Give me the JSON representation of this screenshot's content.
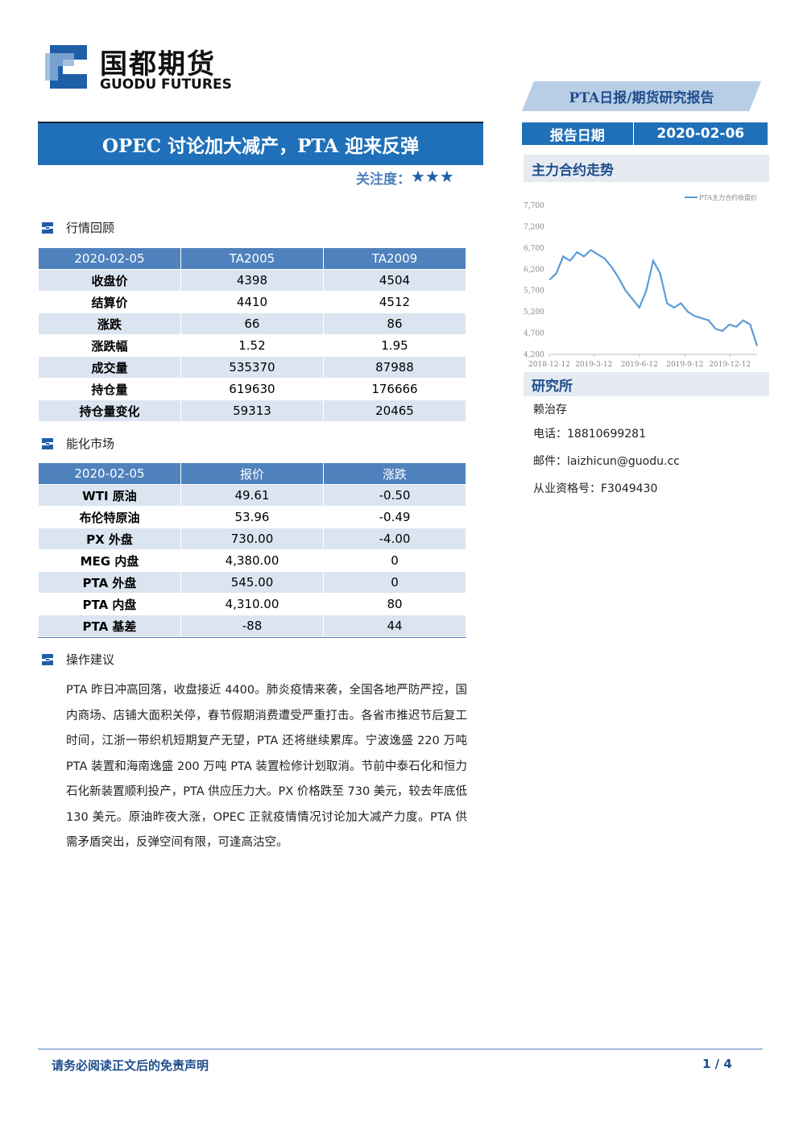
{
  "header": {
    "logo_cn": "国都期货",
    "logo_en": "GUODU FUTURES",
    "report_type": "PTA日报/期货研究报告",
    "date_label": "报告日期",
    "date": "2020-02-06"
  },
  "title": "OPEC 讨论加大减产，PTA 迎来反弹",
  "attention_label": "关注度：",
  "attention": "★★★",
  "market_review": {
    "heading": "行情回顾",
    "table": {
      "header": [
        "2020-02-05",
        "TA2005",
        "TA2009"
      ],
      "rows": [
        [
          "收盘价",
          "4398",
          "4504"
        ],
        [
          "结算价",
          "4410",
          "4512"
        ],
        [
          "涨跌",
          "66",
          "86"
        ],
        [
          "涨跌幅",
          "1.52",
          "1.95"
        ],
        [
          "成交量",
          "535370",
          "87988"
        ],
        [
          "持仓量",
          "619630",
          "176666"
        ],
        [
          "持仓量变化",
          "59313",
          "20465"
        ]
      ]
    }
  },
  "energy_market": {
    "heading": "能化市场",
    "table": {
      "header": [
        "2020-02-05",
        "报价",
        "涨跌"
      ],
      "rows": [
        [
          "WTI 原油",
          "49.61",
          "-0.50"
        ],
        [
          "布伦特原油",
          "53.96",
          "-0.49"
        ],
        [
          "PX 外盘",
          "730.00",
          "-4.00"
        ],
        [
          "MEG 内盘",
          "4,380.00",
          "0"
        ],
        [
          "PTA 外盘",
          "545.00",
          "0"
        ],
        [
          "PTA 内盘",
          "4,310.00",
          "80"
        ],
        [
          "PTA 基差",
          "-88",
          "44"
        ]
      ]
    }
  },
  "advice": {
    "heading": "操作建议",
    "text": "PTA 昨日冲高回落，收盘接近 4400。肺炎疫情来袭，全国各地严防严控，国内商场、店铺大面积关停，春节假期消费遭受严重打击。各省市推迟节后复工时间，江浙一带织机短期复产无望，PTA 还将继续累库。宁波逸盛 220 万吨 PTA 装置和海南逸盛 200 万吨 PTA 装置检修计划取消。节前中泰石化和恒力石化新装置顺利投产，PTA 供应压力大。PX 价格跌至 730 美元，较去年底低 130 美元。原油昨夜大涨，OPEC 正就疫情情况讨论加大减产力度。PTA 供需矛盾突出，反弹空间有限，可逢高沽空。"
  },
  "sidebar": {
    "chart_heading": "主力合约走势",
    "research_heading": "研究所",
    "analyst": "赖治存",
    "phone": "电话：18810699281",
    "email": "邮件：laizhicun@guodu.cc",
    "license": "从业资格号：F3049430"
  },
  "chart_data": {
    "type": "line",
    "x": [
      "2018-12-12",
      "2018-12-26",
      "2019-01-09",
      "2019-01-23",
      "2019-02-06",
      "2019-02-20",
      "2019-03-06",
      "2019-03-20",
      "2019-04-03",
      "2019-04-17",
      "2019-05-01",
      "2019-05-15",
      "2019-05-29",
      "2019-06-12",
      "2019-06-26",
      "2019-07-10",
      "2019-07-24",
      "2019-08-07",
      "2019-08-21",
      "2019-09-04",
      "2019-09-18",
      "2019-10-02",
      "2019-10-16",
      "2019-10-30",
      "2019-11-13",
      "2019-11-27",
      "2019-12-11",
      "2019-12-25",
      "2020-01-08",
      "2020-01-22",
      "2020-02-05"
    ],
    "series": [
      {
        "name": "PTA主力合约收盘价",
        "color": "#5b9bd5",
        "values": [
          5950,
          6100,
          6500,
          6400,
          6600,
          6500,
          6650,
          6550,
          6450,
          6250,
          6000,
          5700,
          5500,
          5300,
          5700,
          6400,
          6100,
          5400,
          5300,
          5400,
          5200,
          5100,
          5050,
          5000,
          4800,
          4750,
          4900,
          4850,
          5000,
          4900,
          4400
        ]
      }
    ],
    "xlim": [
      "2018-12-12",
      "2020-02-05"
    ],
    "xticks": [
      "2018-12-12",
      "2019-3-12",
      "2019-6-12",
      "2019-9-12",
      "2019-12-12"
    ],
    "ylim": [
      4200,
      7700
    ],
    "yticks": [
      {
        "value": 4200,
        "label": "4,200"
      },
      {
        "value": 4700,
        "label": "4,700"
      },
      {
        "value": 5200,
        "label": "5,200"
      },
      {
        "value": 5700,
        "label": "5,700"
      },
      {
        "value": 6200,
        "label": "6,200"
      },
      {
        "value": 6700,
        "label": "6,700"
      },
      {
        "value": 7200,
        "label": "7,200"
      },
      {
        "value": 7700,
        "label": "7,700"
      }
    ],
    "legend": "top-right"
  },
  "footer": {
    "disclaimer": "请务必阅读正文后的免责声明",
    "page": "1 / 4"
  }
}
